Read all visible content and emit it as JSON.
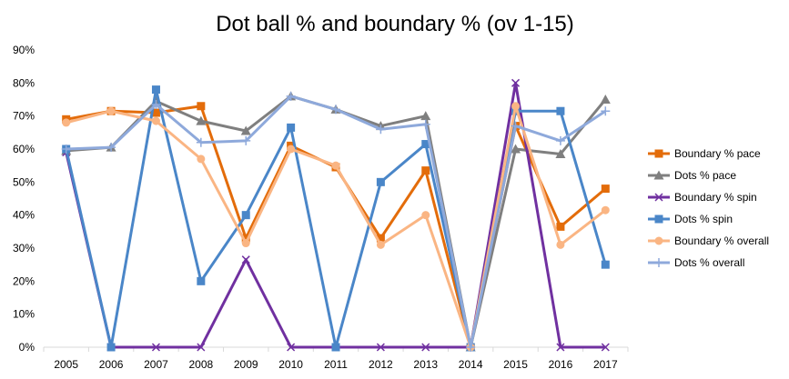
{
  "chart_data": {
    "type": "line",
    "title": "Dot ball % and boundary % (ov 1-15)",
    "xlabel": "",
    "ylabel": "",
    "categories": [
      "2005",
      "2006",
      "2007",
      "2008",
      "2009",
      "2010",
      "2011",
      "2012",
      "2013",
      "2014",
      "2015",
      "2016",
      "2017"
    ],
    "y_ticks": [
      "0%",
      "10%",
      "20%",
      "30%",
      "40%",
      "50%",
      "60%",
      "70%",
      "80%",
      "90%"
    ],
    "ylim": [
      0,
      90
    ],
    "grid": false,
    "legend_position": "right",
    "series": [
      {
        "name": "Boundary % pace",
        "color": "#E36C0A",
        "marker": "square",
        "values": [
          69,
          71.5,
          71,
          73,
          33,
          61,
          54.5,
          33,
          53.5,
          0,
          67,
          36.5,
          48
        ]
      },
      {
        "name": "Dots % pace",
        "color": "#7F7F7F",
        "marker": "triangle",
        "values": [
          59.5,
          60.5,
          74.5,
          68.5,
          65.5,
          76,
          72,
          67,
          70,
          0,
          60,
          58.5,
          75
        ]
      },
      {
        "name": "Boundary % spin",
        "color": "#7030A0",
        "marker": "x",
        "values": [
          59,
          0,
          0,
          0,
          26.5,
          0,
          0,
          0,
          0,
          0,
          80,
          0,
          0
        ]
      },
      {
        "name": "Dots % spin",
        "color": "#4A86C8",
        "marker": "square",
        "values": [
          60,
          0,
          78,
          20,
          40,
          66.5,
          0,
          50,
          61.5,
          0,
          71.5,
          71.5,
          25
        ]
      },
      {
        "name": "Boundary % overall",
        "color": "#FAB583",
        "marker": "circle",
        "values": [
          68,
          71.5,
          68.5,
          57,
          31.5,
          60,
          55,
          31,
          40,
          0,
          73,
          31,
          41.5
        ]
      },
      {
        "name": "Dots % overall",
        "color": "#8EA9DB",
        "marker": "plus",
        "values": [
          60,
          60.5,
          73.5,
          62,
          62.5,
          76,
          72,
          66,
          67.5,
          0,
          67,
          62.5,
          71.5
        ]
      }
    ]
  }
}
